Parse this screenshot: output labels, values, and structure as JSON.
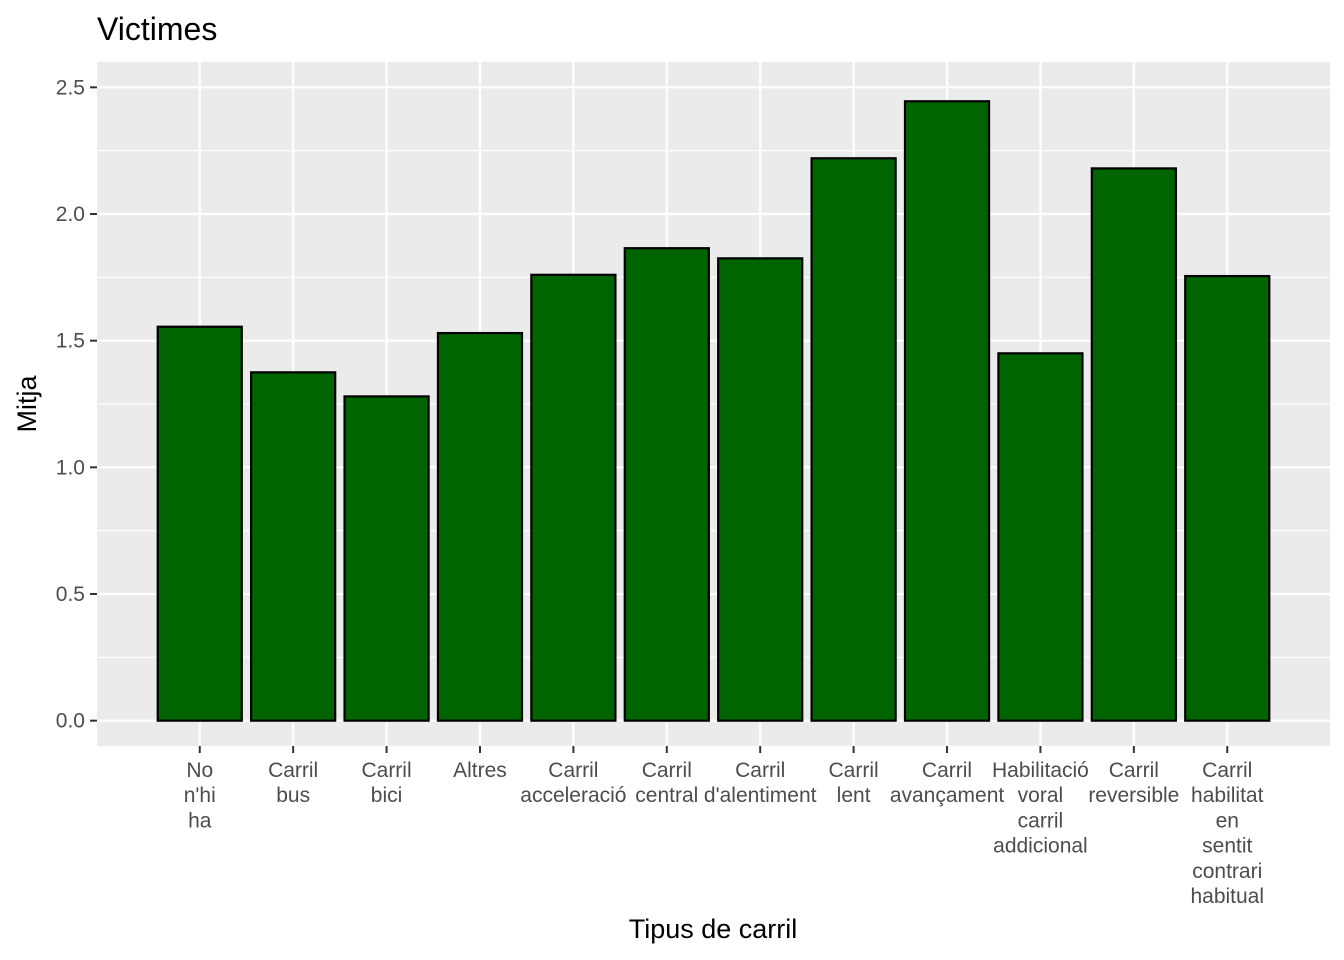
{
  "chart_data": {
    "type": "bar",
    "title": "Victimes",
    "xlabel": "Tipus de carril",
    "ylabel": "Mitja",
    "ylim": [
      -0.1,
      2.6
    ],
    "yticks": [
      "0.0",
      "0.5",
      "1.0",
      "1.5",
      "2.0",
      "2.5"
    ],
    "categories": [
      [
        "No",
        "n'hi",
        "ha"
      ],
      [
        "Carril",
        "bus"
      ],
      [
        "Carril",
        "bici"
      ],
      [
        "Altres"
      ],
      [
        "Carril",
        "acceleració"
      ],
      [
        "Carril",
        "central"
      ],
      [
        "Carril",
        "d'alentiment"
      ],
      [
        "Carril",
        "lent"
      ],
      [
        "Carril",
        "avançament"
      ],
      [
        "Habilitació",
        "voral",
        "carril",
        "addicional"
      ],
      [
        "Carril",
        "reversible"
      ],
      [
        "Carril",
        "habilitat",
        "en",
        "sentit",
        "contrari",
        "habitual"
      ]
    ],
    "values": [
      1.555,
      1.375,
      1.28,
      1.53,
      1.76,
      1.865,
      1.825,
      2.22,
      2.445,
      1.45,
      2.18,
      1.755
    ],
    "grid": true,
    "legend": "none"
  },
  "colors": {
    "bar_fill": "#006400",
    "bar_stroke": "#000000",
    "panel_bg": "#ebebeb",
    "grid": "#ffffff"
  }
}
